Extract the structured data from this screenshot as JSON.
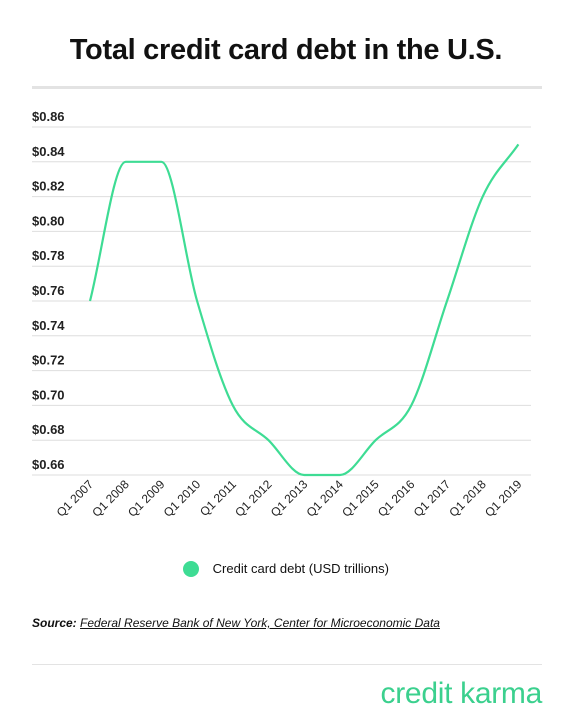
{
  "title": "Total credit card debt in the U.S.",
  "legend_label": "Credit card debt (USD trillions)",
  "source": {
    "prefix": "Source:",
    "text": "Federal Reserve Bank of New York, Center for Microeconomic Data"
  },
  "logo_text": "credit karma",
  "colors": {
    "line": "#3edc94",
    "grid": "#dedede",
    "brand": "#3bd08e"
  },
  "chart_data": {
    "type": "line",
    "title": "Total credit card debt in the U.S.",
    "xlabel": "",
    "ylabel": "",
    "categories": [
      "Q1 2007",
      "Q1 2008",
      "Q1 2009",
      "Q1 2010",
      "Q1 2011",
      "Q1 2012",
      "Q1 2013",
      "Q1 2014",
      "Q1 2015",
      "Q1 2016",
      "Q1 2017",
      "Q1 2018",
      "Q1 2019"
    ],
    "y_tick_labels": [
      "$0.66",
      "$0.68",
      "$0.70",
      "$0.72",
      "$0.74",
      "$0.76",
      "$0.78",
      "$0.80",
      "$0.82",
      "$0.84",
      "$0.86"
    ],
    "ylim": [
      0.66,
      0.86
    ],
    "series": [
      {
        "name": "Credit card debt (USD trillions)",
        "values": [
          0.76,
          0.84,
          0.84,
          0.76,
          0.7,
          0.68,
          0.66,
          0.66,
          0.68,
          0.7,
          0.76,
          0.82,
          0.85
        ]
      }
    ],
    "grid": true,
    "legend_position": "bottom"
  }
}
